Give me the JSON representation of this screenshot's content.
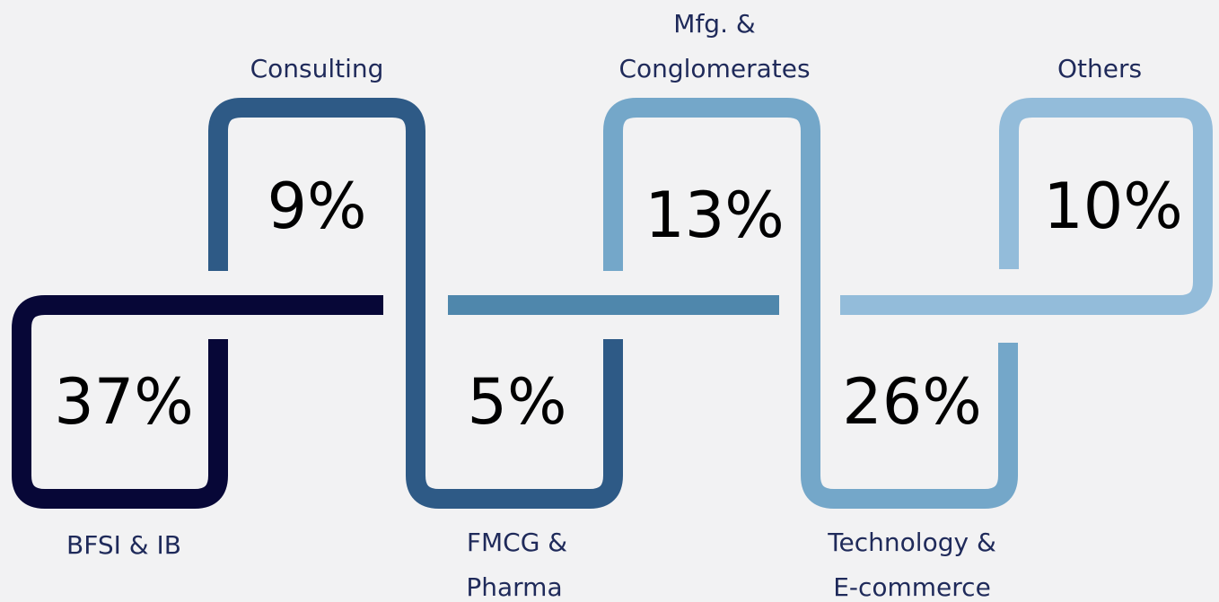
{
  "segments": [
    {
      "label": "BFSI & IB",
      "value": "37%"
    },
    {
      "label": "Consulting",
      "value": "9%"
    },
    {
      "label": "FMCG & Pharma",
      "label_lines": [
        "FMCG &",
        "Pharma"
      ],
      "value": "5%"
    },
    {
      "label_lines": [
        "Mfg. &",
        "Conglomerates"
      ],
      "value": "13%"
    },
    {
      "label_lines": [
        "Technology &",
        "E-commerce"
      ],
      "value": "26%"
    },
    {
      "label": "Others",
      "value": "10%"
    }
  ]
}
